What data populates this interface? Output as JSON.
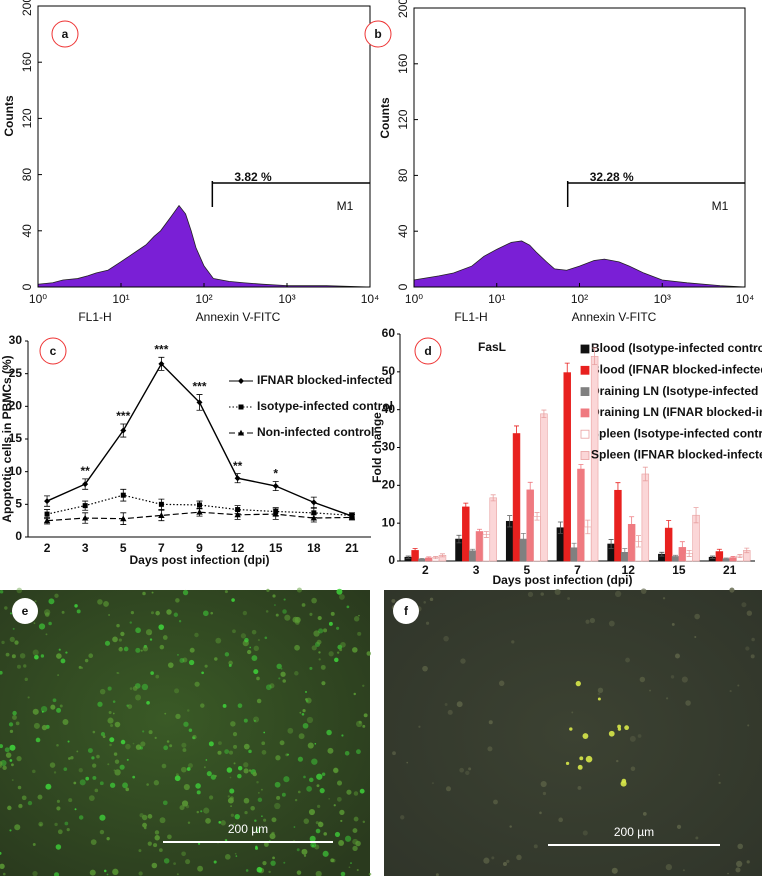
{
  "chart_data": [
    {
      "type": "area",
      "panel_label": "a",
      "y_label": "Counts",
      "x_labels": [
        "FL1-H",
        "Annexin V-FITC"
      ],
      "x": [
        1,
        1.5,
        2,
        3,
        4,
        5,
        7,
        10,
        15,
        20,
        25,
        30,
        40,
        50,
        60,
        70,
        80,
        100,
        130,
        200,
        300,
        500,
        1000,
        3000,
        10000
      ],
      "values": [
        2,
        3,
        5,
        6,
        8,
        10,
        12,
        18,
        25,
        30,
        36,
        40,
        50,
        58,
        52,
        40,
        28,
        15,
        6,
        4,
        3,
        2,
        1,
        1,
        0
      ],
      "color": "#7a1fd6",
      "log_x": true,
      "xlim": [
        1,
        10000
      ],
      "xticks": [
        {
          "value": 1,
          "label": "10⁰"
        },
        {
          "value": 10,
          "label": "10¹"
        },
        {
          "value": 100,
          "label": "10²"
        },
        {
          "value": 1000,
          "label": "10³"
        },
        {
          "value": 10000,
          "label": "10⁴"
        }
      ],
      "ylim": [
        0,
        200
      ],
      "yticks": [
        0,
        40,
        80,
        120,
        160,
        200
      ],
      "gate": {
        "x": 126,
        "label": "M1",
        "percent": "3.82 %"
      }
    },
    {
      "type": "area",
      "panel_label": "b",
      "y_label": "Counts",
      "x_labels": [
        "FL1-H",
        "Annexin V-FITC"
      ],
      "x": [
        1,
        2,
        3,
        5,
        7,
        10,
        15,
        20,
        25,
        30,
        40,
        50,
        70,
        100,
        150,
        200,
        300,
        400,
        600,
        1000,
        2000,
        5000,
        10000
      ],
      "values": [
        5,
        8,
        10,
        15,
        22,
        27,
        32,
        33,
        30,
        25,
        18,
        13,
        12,
        15,
        19,
        20,
        18,
        15,
        10,
        5,
        3,
        1,
        0
      ],
      "color": "#7a1fd6",
      "log_x": true,
      "xlim": [
        1,
        10000
      ],
      "xticks": [
        {
          "value": 1,
          "label": "10⁰"
        },
        {
          "value": 10,
          "label": "10¹"
        },
        {
          "value": 100,
          "label": "10²"
        },
        {
          "value": 1000,
          "label": "10³"
        },
        {
          "value": 10000,
          "label": "10⁴"
        }
      ],
      "ylim": [
        0,
        200
      ],
      "yticks": [
        0,
        40,
        80,
        120,
        160,
        200
      ],
      "gate": {
        "x": 72,
        "label": "M1",
        "percent": "32.28 %"
      }
    },
    {
      "type": "line",
      "panel_label": "c",
      "y_label": "Apoptotic cells in PBMCs (%)",
      "x_label": "Days post infection (dpi)",
      "categories": [
        "2",
        "3",
        "5",
        "7",
        "9",
        "12",
        "15",
        "18",
        "21"
      ],
      "ylim": [
        0,
        30
      ],
      "yticks": [
        0,
        5,
        10,
        15,
        20,
        25,
        30
      ],
      "series": [
        {
          "name": "IFNAR blocked-infected",
          "color": "#000000",
          "dash": "solid",
          "marker": "diamond",
          "values": [
            5.5,
            8.1,
            16.3,
            26.5,
            20.6,
            9.0,
            7.8,
            5.3,
            3.2
          ],
          "errors": [
            0.8,
            0.8,
            1.0,
            1.0,
            1.2,
            0.7,
            0.7,
            0.8,
            0.3
          ],
          "significance": [
            null,
            "**",
            "***",
            "***",
            "***",
            "**",
            "*",
            null,
            null
          ]
        },
        {
          "name": "Isotype-infected control",
          "color": "#000000",
          "dash": "dotted",
          "marker": "square",
          "values": [
            3.5,
            4.8,
            6.4,
            5.0,
            4.9,
            4.2,
            3.9,
            3.7,
            3.3
          ],
          "errors": [
            0.7,
            0.7,
            0.9,
            0.8,
            0.6,
            0.6,
            0.6,
            0.7,
            0.4
          ]
        },
        {
          "name": "Non-infected control",
          "color": "#000000",
          "dash": "dashed",
          "marker": "triangle",
          "values": [
            2.5,
            2.9,
            2.8,
            3.3,
            3.8,
            3.4,
            3.5,
            2.9,
            3.0
          ],
          "errors": [
            0.5,
            0.8,
            0.9,
            0.8,
            0.6,
            0.7,
            0.8,
            0.6,
            0.4
          ]
        }
      ]
    },
    {
      "type": "bar",
      "panel_label": "d",
      "title": "FasL",
      "y_label": "Fold change",
      "x_label": "Days post infection (dpi)",
      "categories": [
        "2",
        "3",
        "5",
        "7",
        "12",
        "15",
        "21"
      ],
      "ylim": [
        0,
        60
      ],
      "yticks": [
        0,
        10,
        20,
        30,
        40,
        50,
        60
      ],
      "series": [
        {
          "name": "Blood (Isotype-infected control)",
          "color": "#111111",
          "stroke": "#111111",
          "values": [
            1.0,
            5.8,
            10.5,
            8.8,
            4.5,
            1.8,
            1.0
          ],
          "errors": [
            0.3,
            1.0,
            1.5,
            1.5,
            1.2,
            0.5,
            0.3
          ]
        },
        {
          "name": "Blood (IFNAR blocked-infected)",
          "color": "#e8211f",
          "stroke": "#e8211f",
          "values": [
            2.8,
            14.3,
            33.7,
            49.8,
            18.7,
            8.7,
            2.5
          ],
          "errors": [
            0.5,
            1.0,
            2.0,
            2.5,
            2.0,
            2.0,
            0.6
          ]
        },
        {
          "name": "Draining LN (Isotype-infected control)",
          "color": "#808080",
          "stroke": "#808080",
          "values": [
            0.5,
            2.7,
            5.8,
            3.5,
            2.3,
            1.2,
            0.6
          ],
          "errors": [
            0.2,
            0.4,
            1.5,
            1.2,
            1.0,
            0.3,
            0.2
          ]
        },
        {
          "name": "Draining LN (IFNAR blocked-infected)",
          "color": "#ef7a80",
          "stroke": "#ef7a80",
          "values": [
            0.8,
            7.8,
            18.8,
            24.3,
            9.7,
            3.6,
            0.9
          ],
          "errors": [
            0.3,
            0.6,
            2.0,
            1.2,
            2.0,
            1.5,
            0.3
          ]
        },
        {
          "name": "Spleen (Isotype-infected control)",
          "color": "#ffffff",
          "stroke": "#e8a0a0",
          "values": [
            0.9,
            7.0,
            11.8,
            9.0,
            5.2,
            2.0,
            1.3
          ],
          "errors": [
            0.3,
            0.8,
            1.0,
            1.8,
            1.5,
            0.8,
            0.4
          ]
        },
        {
          "name": "Spleen (IFNAR blocked-infected)",
          "color": "#fbd6d7",
          "stroke": "#e8a0a0",
          "values": [
            1.5,
            16.7,
            38.9,
            54.1,
            23.0,
            12.1,
            2.8
          ],
          "errors": [
            0.4,
            0.8,
            1.0,
            2.2,
            1.8,
            2.0,
            0.6
          ]
        }
      ]
    }
  ],
  "images": [
    {
      "panel_label": "e",
      "scale_bar": "200 µm"
    },
    {
      "panel_label": "f",
      "scale_bar": "200 µm"
    }
  ]
}
